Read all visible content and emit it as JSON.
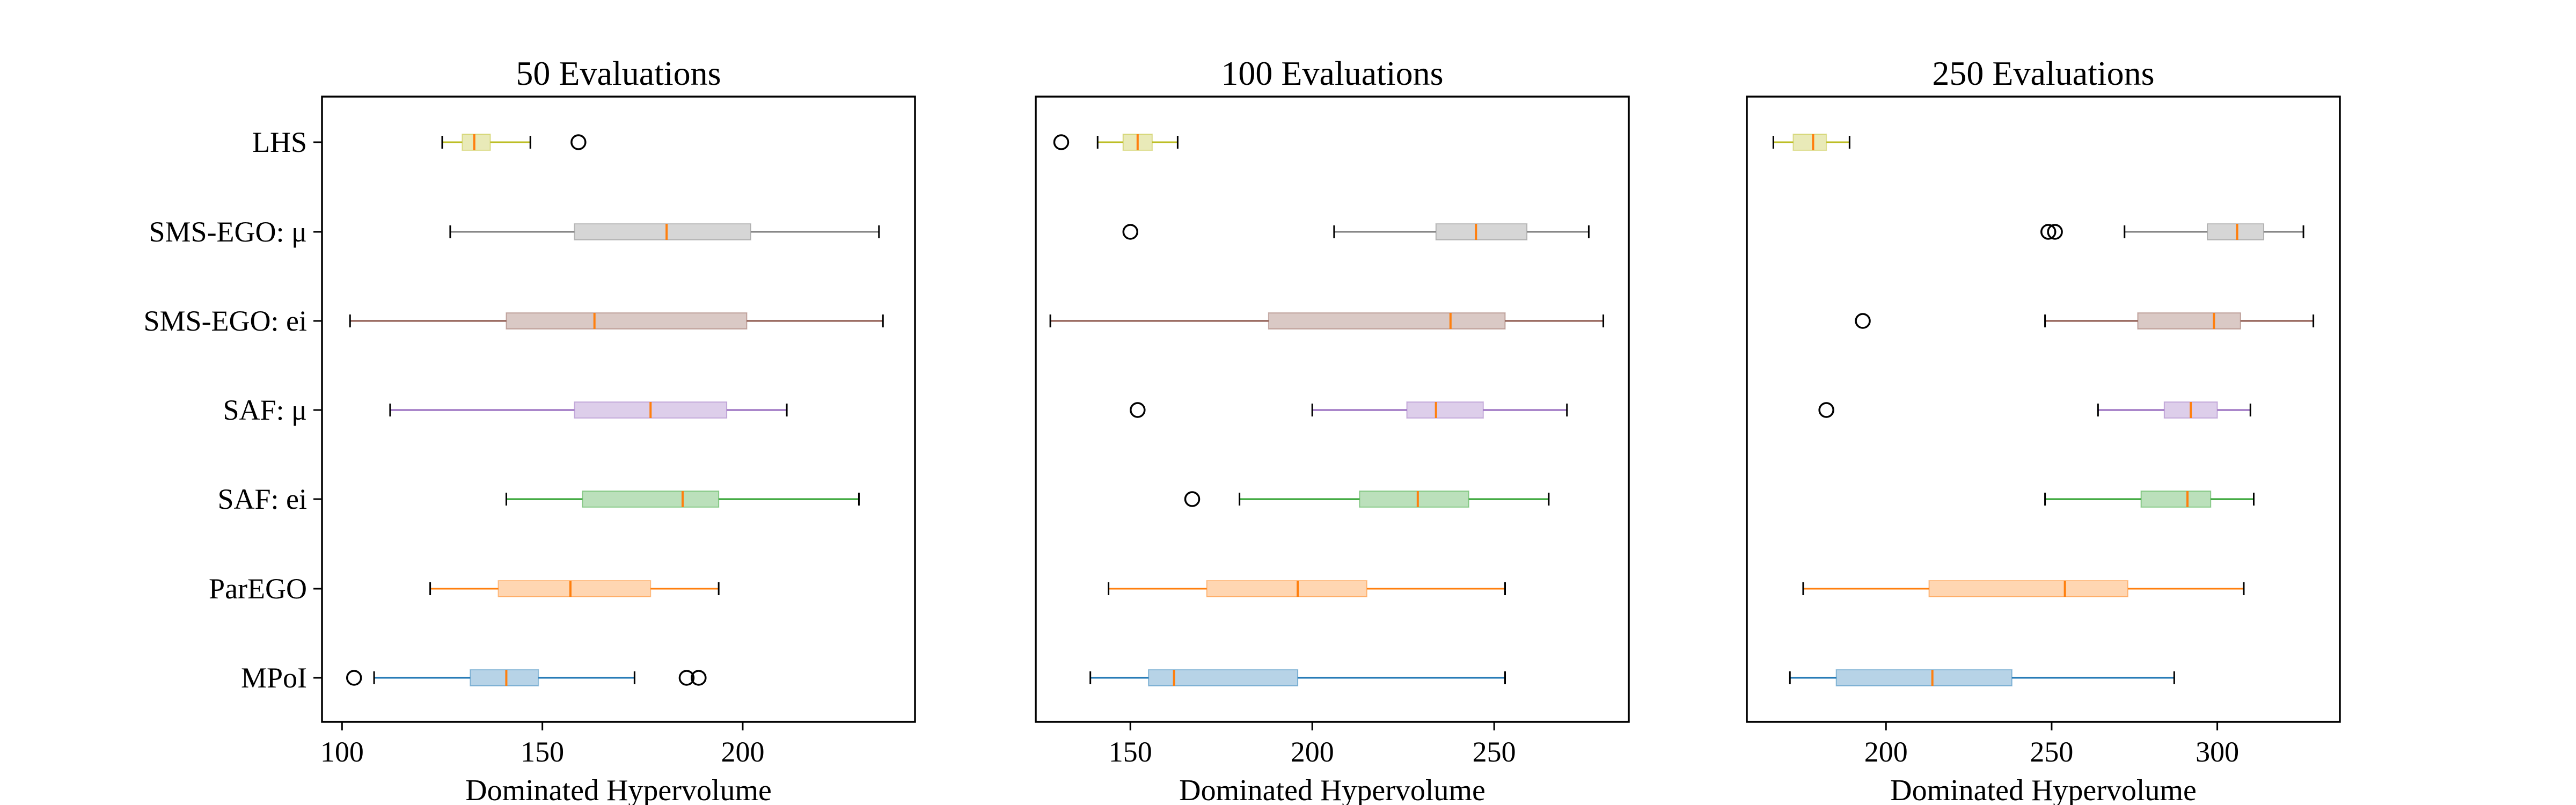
{
  "chart_data": {
    "type": "boxplot",
    "orientation": "horizontal",
    "categories": [
      "LHS",
      "SMS-EGO: μ",
      "SMS-EGO: ei",
      "SAF: μ",
      "SAF: ei",
      "ParEGO",
      "MPoI"
    ],
    "colors": [
      "#bcbd22",
      "#7f7f7f",
      "#8c564b",
      "#9467bd",
      "#2ca02c",
      "#ff7f0e",
      "#1f77b4"
    ],
    "median_color": "#ff7f0e",
    "panels": [
      {
        "title": "50 Evaluations",
        "xlabel": "Dominated Hypervolume",
        "xlim": [
          95,
          243
        ],
        "xticks": [
          100,
          150,
          200
        ],
        "boxes": [
          {
            "category": "LHS",
            "whislo": 125,
            "q1": 130,
            "med": 133,
            "q3": 137,
            "whishi": 147,
            "fliers": [
              159
            ]
          },
          {
            "category": "SMS-EGO: μ",
            "whislo": 127,
            "q1": 158,
            "med": 181,
            "q3": 202,
            "whishi": 234,
            "fliers": []
          },
          {
            "category": "SMS-EGO: ei",
            "whislo": 102,
            "q1": 141,
            "med": 163,
            "q3": 201,
            "whishi": 235,
            "fliers": []
          },
          {
            "category": "SAF: μ",
            "whislo": 112,
            "q1": 158,
            "med": 177,
            "q3": 196,
            "whishi": 211,
            "fliers": []
          },
          {
            "category": "SAF: ei",
            "whislo": 141,
            "q1": 160,
            "med": 185,
            "q3": 194,
            "whishi": 229,
            "fliers": []
          },
          {
            "category": "ParEGO",
            "whislo": 122,
            "q1": 139,
            "med": 157,
            "q3": 177,
            "whishi": 194,
            "fliers": []
          },
          {
            "category": "MPoI",
            "whislo": 108,
            "q1": 132,
            "med": 141,
            "q3": 149,
            "whishi": 173,
            "fliers": [
              103,
              186,
              189
            ]
          }
        ]
      },
      {
        "title": "100 Evaluations",
        "xlabel": "Dominated Hypervolume",
        "xlim": [
          124,
          287
        ],
        "xticks": [
          150,
          200,
          250
        ],
        "boxes": [
          {
            "category": "LHS",
            "whislo": 141,
            "q1": 148,
            "med": 152,
            "q3": 156,
            "whishi": 163,
            "fliers": [
              131
            ]
          },
          {
            "category": "SMS-EGO: μ",
            "whislo": 206,
            "q1": 234,
            "med": 245,
            "q3": 259,
            "whishi": 276,
            "fliers": [
              150
            ]
          },
          {
            "category": "SMS-EGO: ei",
            "whislo": 128,
            "q1": 188,
            "med": 238,
            "q3": 253,
            "whishi": 280,
            "fliers": []
          },
          {
            "category": "SAF: μ",
            "whislo": 200,
            "q1": 226,
            "med": 234,
            "q3": 247,
            "whishi": 270,
            "fliers": [
              152
            ]
          },
          {
            "category": "SAF: ei",
            "whislo": 180,
            "q1": 213,
            "med": 229,
            "q3": 243,
            "whishi": 265,
            "fliers": [
              167
            ]
          },
          {
            "category": "ParEGO",
            "whislo": 144,
            "q1": 171,
            "med": 196,
            "q3": 215,
            "whishi": 253,
            "fliers": []
          },
          {
            "category": "MPoI",
            "whislo": 139,
            "q1": 155,
            "med": 162,
            "q3": 196,
            "whishi": 253,
            "fliers": []
          }
        ]
      },
      {
        "title": "250 Evaluations",
        "xlabel": "Dominated Hypervolume",
        "xlim": [
          158,
          337
        ],
        "xticks": [
          200,
          250,
          300
        ],
        "boxes": [
          {
            "category": "LHS",
            "whislo": 166,
            "q1": 172,
            "med": 178,
            "q3": 182,
            "whishi": 189,
            "fliers": []
          },
          {
            "category": "SMS-EGO: μ",
            "whislo": 272,
            "q1": 297,
            "med": 306,
            "q3": 314,
            "whishi": 326,
            "fliers": [
              249,
              251
            ]
          },
          {
            "category": "SMS-EGO: ei",
            "whislo": 248,
            "q1": 276,
            "med": 299,
            "q3": 307,
            "whishi": 329,
            "fliers": [
              193
            ]
          },
          {
            "category": "SAF: μ",
            "whislo": 264,
            "q1": 284,
            "med": 292,
            "q3": 300,
            "whishi": 310,
            "fliers": [
              182
            ]
          },
          {
            "category": "SAF: ei",
            "whislo": 248,
            "q1": 277,
            "med": 291,
            "q3": 298,
            "whishi": 311,
            "fliers": []
          },
          {
            "category": "ParEGO",
            "whislo": 175,
            "q1": 213,
            "med": 254,
            "q3": 273,
            "whishi": 308,
            "fliers": []
          },
          {
            "category": "MPoI",
            "whislo": 171,
            "q1": 185,
            "med": 214,
            "q3": 238,
            "whishi": 287,
            "fliers": []
          }
        ]
      }
    ]
  }
}
